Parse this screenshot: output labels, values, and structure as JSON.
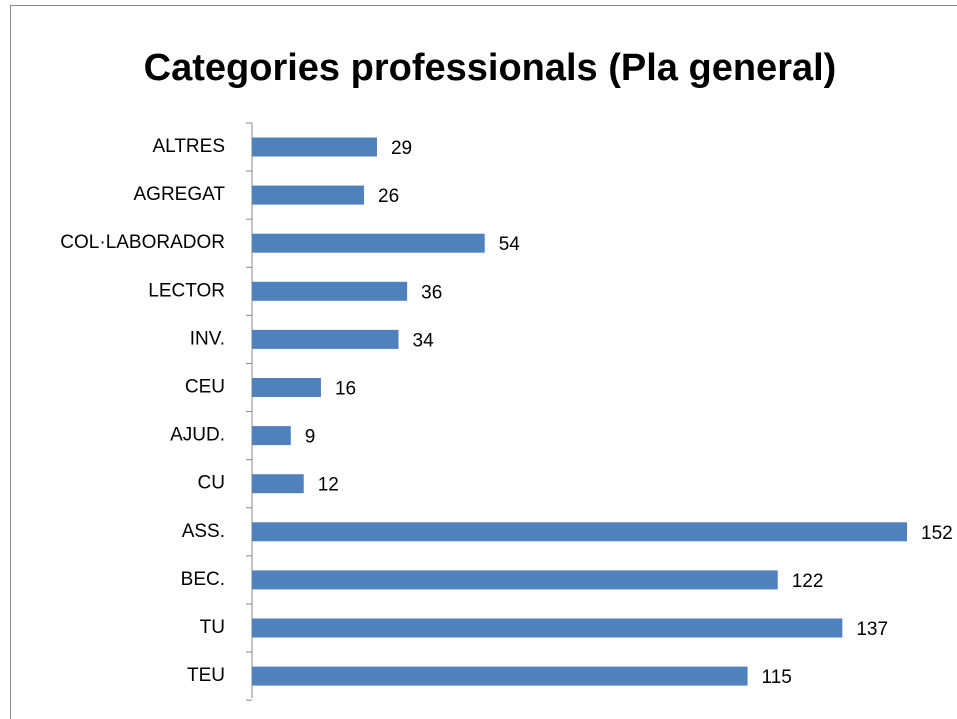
{
  "chart_data": {
    "type": "bar",
    "orientation": "horizontal",
    "title": "Categories professionals (Pla general)",
    "categories": [
      "ALTRES",
      "AGREGAT",
      "COL·LABORADOR",
      "LECTOR",
      "INV.",
      "CEU",
      "AJUD.",
      "CU",
      "ASS.",
      "BEC.",
      "TU",
      "TEU"
    ],
    "values": [
      29,
      26,
      54,
      36,
      34,
      16,
      9,
      12,
      152,
      122,
      137,
      115
    ],
    "color": "#4f81bd"
  }
}
